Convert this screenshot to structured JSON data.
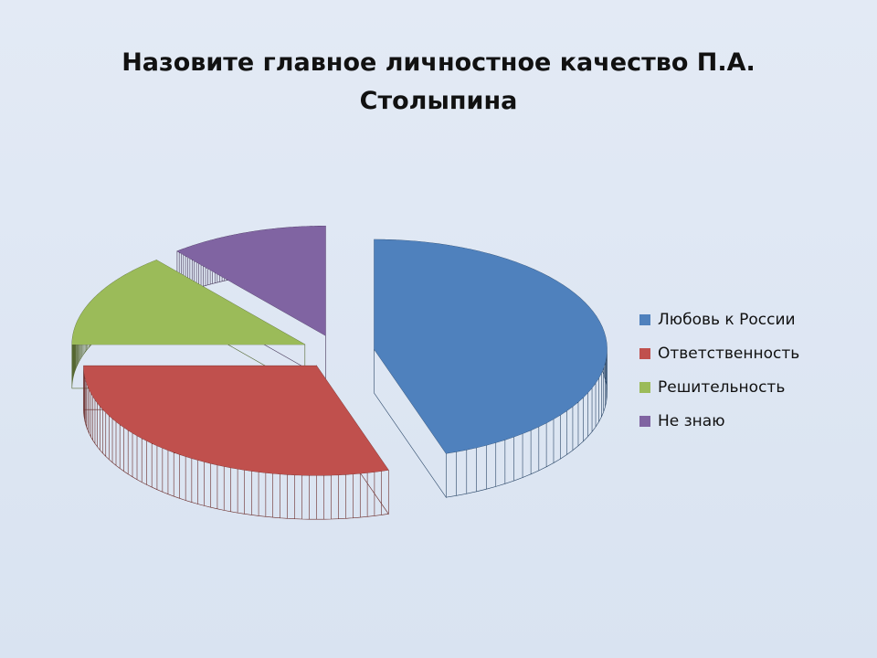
{
  "chart_data": {
    "type": "pie3d",
    "title": "Назовите главное личностное качество П.А. Столыпина",
    "categories": [
      "Любовь к России",
      "Ответственность",
      "Решительность",
      "Не знаю"
    ],
    "values": [
      45,
      30,
      14,
      11
    ],
    "colors": [
      "#4f81bd",
      "#c0504d",
      "#9bbb59",
      "#8064a2"
    ],
    "legend": "right"
  }
}
